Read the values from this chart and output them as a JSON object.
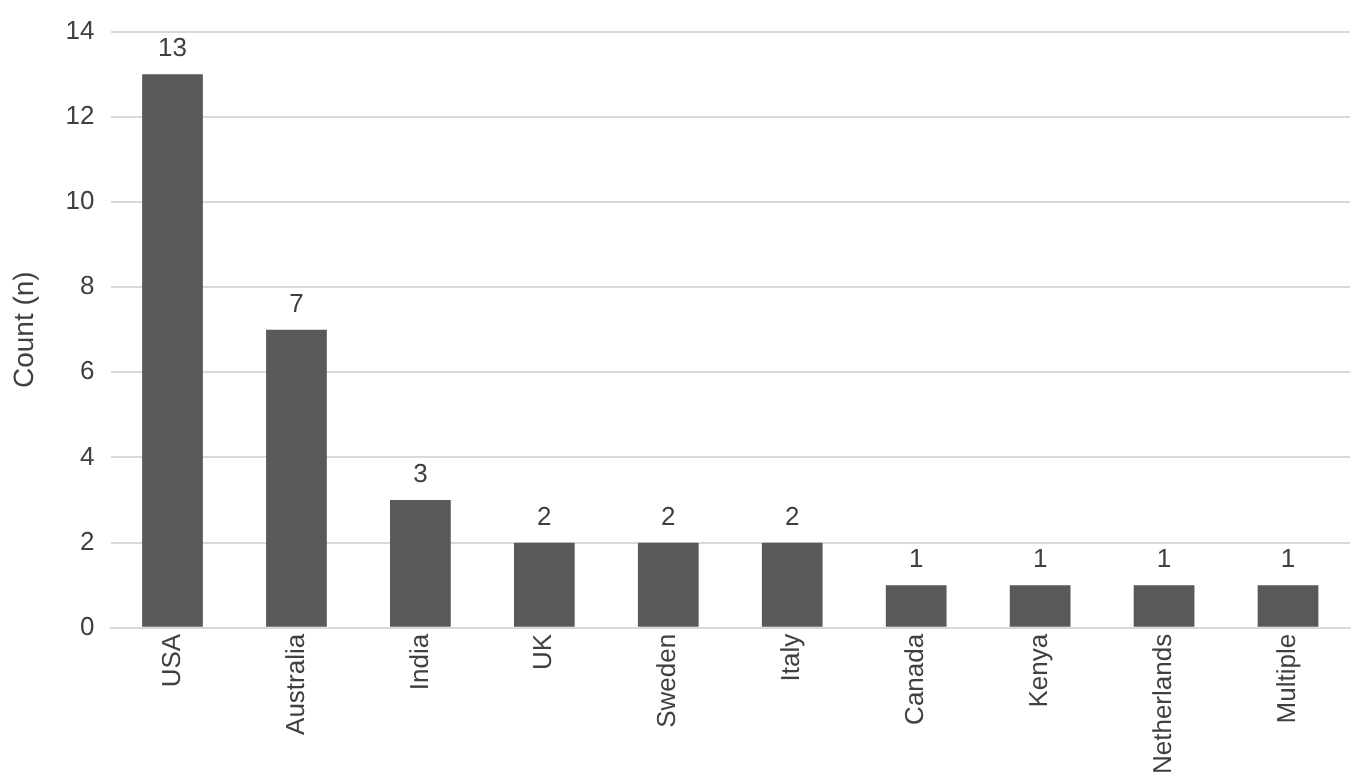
{
  "chart_data": {
    "type": "bar",
    "ylabel": "Count (n)",
    "categories": [
      "USA",
      "Australia",
      "India",
      "UK",
      "Sweden",
      "Italy",
      "Canada",
      "Kenya",
      "Netherlands",
      "Multiple"
    ],
    "values": [
      13,
      7,
      3,
      2,
      2,
      2,
      1,
      1,
      1,
      1
    ],
    "color": "#595959",
    "ylim": [
      0,
      14
    ],
    "yticks": [
      0,
      2,
      4,
      6,
      8,
      10,
      12,
      14
    ],
    "grid": "y",
    "data_labels": true,
    "legend": false
  }
}
